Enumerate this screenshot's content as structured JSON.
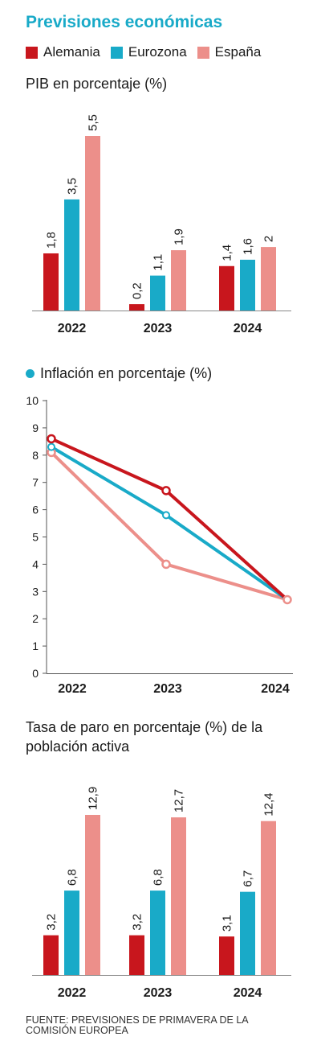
{
  "title": "Previsiones económicas",
  "legend": [
    {
      "label": "Alemania",
      "color": "#c8161d"
    },
    {
      "label": "Eurozona",
      "color": "#19aac8"
    },
    {
      "label": "España",
      "color": "#ec8f8a"
    }
  ],
  "source": "FUENTE: PREVISIONES DE PRIMAVERA DE LA COMISIÓN EUROPEA",
  "chart_data": [
    {
      "type": "bar",
      "title": "PIB en porcentaje (%)",
      "categories": [
        "2022",
        "2023",
        "2024"
      ],
      "series": [
        {
          "name": "Alemania",
          "values": [
            1.8,
            0.2,
            1.4
          ],
          "labels": [
            "1,8",
            "0,2",
            "1,4"
          ]
        },
        {
          "name": "Eurozona",
          "values": [
            3.5,
            1.1,
            1.6
          ],
          "labels": [
            "3,5",
            "1,1",
            "1,6"
          ]
        },
        {
          "name": "España",
          "values": [
            5.5,
            1.9,
            2.0
          ],
          "labels": [
            "5,5",
            "1,9",
            "2"
          ]
        }
      ],
      "ylim": [
        0,
        5.5
      ]
    },
    {
      "type": "line",
      "title": "Inflación en porcentaje (%)",
      "categories": [
        "2022",
        "2023",
        "2024"
      ],
      "yticks": [
        "0",
        "1",
        "2",
        "3",
        "4",
        "5",
        "6",
        "7",
        "8",
        "9",
        "10"
      ],
      "ylim": [
        0,
        10
      ],
      "series": [
        {
          "name": "Alemania",
          "values": [
            8.6,
            6.7,
            2.7
          ]
        },
        {
          "name": "Eurozona",
          "values": [
            8.3,
            5.8,
            2.7
          ]
        },
        {
          "name": "España",
          "values": [
            8.1,
            4.0,
            2.7
          ]
        }
      ]
    },
    {
      "type": "bar",
      "title": "Tasa de paro en porcentaje (%) de la población activa",
      "categories": [
        "2022",
        "2023",
        "2024"
      ],
      "series": [
        {
          "name": "Alemania",
          "values": [
            3.2,
            3.2,
            3.1
          ],
          "labels": [
            "3,2",
            "3,2",
            "3,1"
          ]
        },
        {
          "name": "Eurozona",
          "values": [
            6.8,
            6.8,
            6.7
          ],
          "labels": [
            "6,8",
            "6,8",
            "6,7"
          ]
        },
        {
          "name": "España",
          "values": [
            12.9,
            12.7,
            12.4
          ],
          "labels": [
            "12,9",
            "12,7",
            "12,4"
          ]
        }
      ],
      "ylim": [
        0,
        12.9
      ]
    }
  ]
}
